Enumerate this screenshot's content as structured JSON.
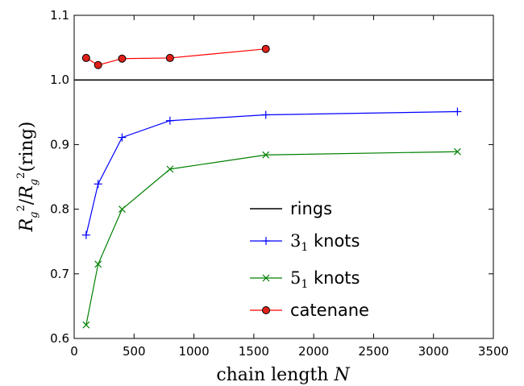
{
  "chart_data": {
    "type": "line",
    "xlabel_text": "chain length ",
    "xlabel_var": "N",
    "ylabel": "R_g^2 / R_g^2(ring)",
    "xlim": [
      0,
      3500
    ],
    "ylim": [
      0.6,
      1.1
    ],
    "xticks": [
      0,
      500,
      1000,
      1500,
      2000,
      2500,
      3000,
      3500
    ],
    "yticks": [
      0.6,
      0.7,
      0.8,
      0.9,
      1.0,
      1.1
    ],
    "xtick_labels": [
      "0",
      "500",
      "1000",
      "1500",
      "2000",
      "2500",
      "3000",
      "3500"
    ],
    "ytick_labels": [
      "0.6",
      "0.7",
      "0.8",
      "0.9",
      "1.0",
      "1.1"
    ],
    "reference_line": {
      "name": "rings",
      "y": 1.0,
      "color": "#000000"
    },
    "series": [
      {
        "name": "3_1 knots",
        "label_main": "3",
        "label_sub": "1",
        "label_rest": " knots",
        "marker": "plus",
        "color": "#0000ff",
        "x": [
          100,
          200,
          400,
          800,
          1600,
          3200
        ],
        "y": [
          0.76,
          0.839,
          0.911,
          0.937,
          0.946,
          0.951
        ]
      },
      {
        "name": "5_1 knots",
        "label_main": "5",
        "label_sub": "1",
        "label_rest": " knots",
        "marker": "x",
        "color": "#008000",
        "x": [
          100,
          200,
          400,
          800,
          1600,
          3200
        ],
        "y": [
          0.621,
          0.715,
          0.8,
          0.862,
          0.884,
          0.889
        ]
      },
      {
        "name": "catenane",
        "label_main": "catenane",
        "label_sub": "",
        "label_rest": "",
        "marker": "circle",
        "color": "#ff0000",
        "marker_fill": "#e0201a",
        "x": [
          100,
          200,
          400,
          800,
          1600
        ],
        "y": [
          1.034,
          1.023,
          1.033,
          1.034,
          1.048
        ]
      }
    ],
    "legend": {
      "position": "lower-right",
      "rings_label": "rings"
    },
    "grid": false
  }
}
